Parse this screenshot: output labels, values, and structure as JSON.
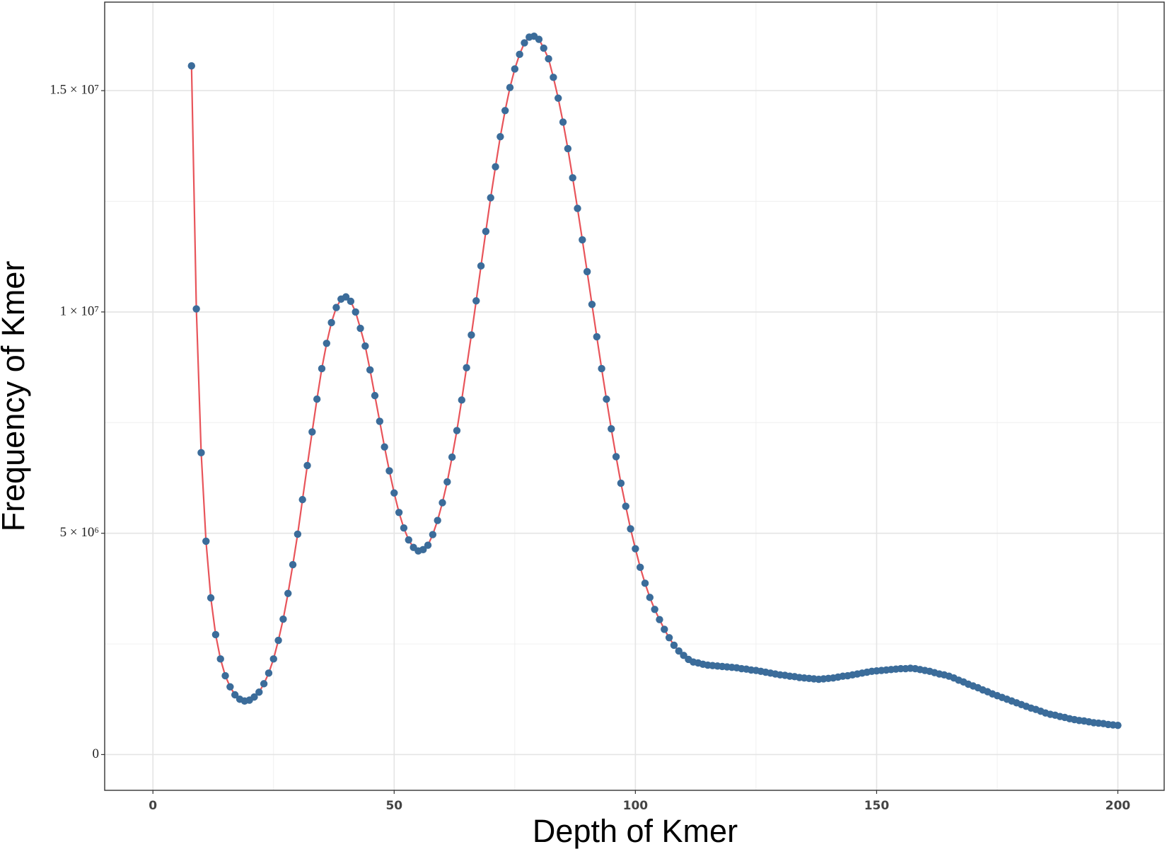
{
  "chart_data": {
    "type": "line",
    "x_label": "Depth of Kmer",
    "y_label": "Frequency of Kmer",
    "x": [
      8,
      9,
      10,
      11,
      12,
      13,
      14,
      15,
      16,
      17,
      18,
      19,
      20,
      21,
      22,
      23,
      24,
      25,
      26,
      27,
      28,
      29,
      30,
      31,
      32,
      33,
      34,
      35,
      36,
      37,
      38,
      39,
      40,
      41,
      42,
      43,
      44,
      45,
      46,
      47,
      48,
      49,
      50,
      51,
      52,
      53,
      54,
      55,
      56,
      57,
      58,
      59,
      60,
      61,
      62,
      63,
      64,
      65,
      66,
      67,
      68,
      69,
      70,
      71,
      72,
      73,
      74,
      75,
      76,
      77,
      78,
      79,
      80,
      81,
      82,
      83,
      84,
      85,
      86,
      87,
      88,
      89,
      90,
      91,
      92,
      93,
      94,
      95,
      96,
      97,
      98,
      99,
      100,
      101,
      102,
      103,
      104,
      105,
      106,
      107,
      108,
      109,
      110,
      111,
      112,
      113,
      114,
      115,
      116,
      117,
      118,
      119,
      120,
      121,
      122,
      123,
      124,
      125,
      126,
      127,
      128,
      129,
      130,
      131,
      132,
      133,
      134,
      135,
      136,
      137,
      138,
      139,
      140,
      141,
      142,
      143,
      144,
      145,
      146,
      147,
      148,
      149,
      150,
      151,
      152,
      153,
      154,
      155,
      156,
      157,
      158,
      159,
      160,
      161,
      162,
      163,
      164,
      165,
      166,
      167,
      168,
      169,
      170,
      171,
      172,
      173,
      174,
      175,
      176,
      177,
      178,
      179,
      180,
      181,
      182,
      183,
      184,
      185,
      186,
      187,
      188,
      189,
      190,
      191,
      192,
      193,
      194,
      195,
      196,
      197,
      198,
      199,
      200
    ],
    "values": [
      15560000,
      10070000,
      6820000,
      4820000,
      3540000,
      2710000,
      2160000,
      1780000,
      1530000,
      1350000,
      1250000,
      1210000,
      1230000,
      1300000,
      1410000,
      1600000,
      1840000,
      2160000,
      2580000,
      3060000,
      3640000,
      4290000,
      4980000,
      5760000,
      6530000,
      7290000,
      8030000,
      8720000,
      9290000,
      9760000,
      10100000,
      10290000,
      10340000,
      10240000,
      10000000,
      9630000,
      9230000,
      8690000,
      8110000,
      7530000,
      6950000,
      6410000,
      5910000,
      5470000,
      5120000,
      4850000,
      4680000,
      4600000,
      4630000,
      4730000,
      4970000,
      5290000,
      5690000,
      6160000,
      6720000,
      7320000,
      8010000,
      8740000,
      9480000,
      10250000,
      11040000,
      11820000,
      12580000,
      13280000,
      13960000,
      14550000,
      15070000,
      15490000,
      15820000,
      16080000,
      16210000,
      16230000,
      16160000,
      15960000,
      15720000,
      15300000,
      14830000,
      14290000,
      13690000,
      13030000,
      12340000,
      11630000,
      10910000,
      10170000,
      9440000,
      8720000,
      8030000,
      7360000,
      6730000,
      6130000,
      5610000,
      5100000,
      4650000,
      4230000,
      3870000,
      3550000,
      3280000,
      3050000,
      2830000,
      2640000,
      2470000,
      2340000,
      2240000,
      2150000,
      2090000,
      2070000,
      2040000,
      2020000,
      2010000,
      2000000,
      1990000,
      1980000,
      1970000,
      1960000,
      1940000,
      1930000,
      1910000,
      1900000,
      1880000,
      1860000,
      1840000,
      1820000,
      1800000,
      1790000,
      1770000,
      1760000,
      1740000,
      1730000,
      1720000,
      1710000,
      1700000,
      1710000,
      1720000,
      1730000,
      1750000,
      1770000,
      1780000,
      1800000,
      1820000,
      1840000,
      1860000,
      1880000,
      1890000,
      1900000,
      1910000,
      1920000,
      1930000,
      1940000,
      1940000,
      1950000,
      1940000,
      1920000,
      1900000,
      1880000,
      1850000,
      1820000,
      1800000,
      1770000,
      1730000,
      1680000,
      1640000,
      1590000,
      1550000,
      1510000,
      1460000,
      1420000,
      1370000,
      1330000,
      1290000,
      1250000,
      1210000,
      1170000,
      1130000,
      1090000,
      1050000,
      1020000,
      980000,
      940000,
      910000,
      890000,
      860000,
      840000,
      810000,
      790000,
      770000,
      760000,
      740000,
      720000,
      710000,
      700000,
      680000,
      670000,
      660000
    ],
    "color": "#e8545a",
    "point_color": "#3b6c9a",
    "xlim": [
      -10,
      209.6
    ],
    "xticks": [
      0,
      50,
      100,
      150,
      200
    ],
    "ylim": [
      -808000,
      17000000
    ],
    "yticks": [
      0,
      {
        "value": 5000000,
        "label": "5 × 10⁶"
      },
      {
        "value": 10000000,
        "label": "1 × 10⁷"
      },
      {
        "value": 15000000,
        "label": "1.5 × 10⁷"
      }
    ],
    "grid": true
  }
}
